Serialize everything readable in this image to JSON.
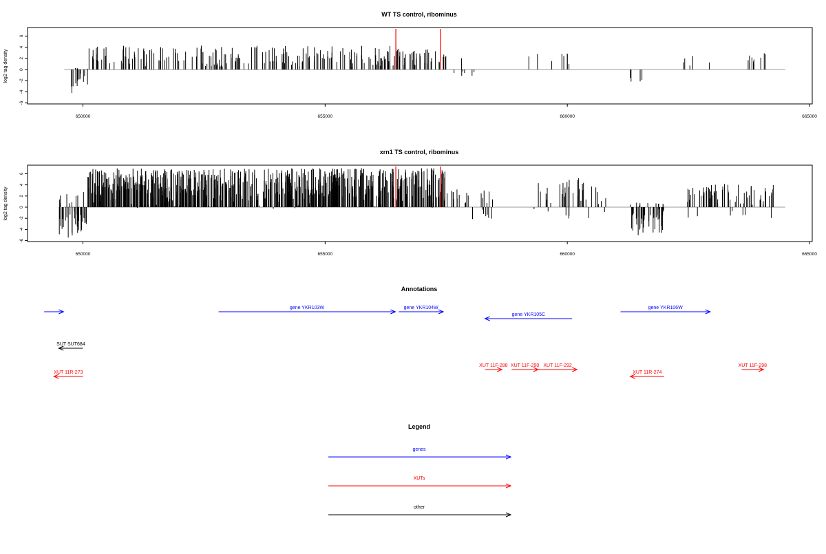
{
  "chart_data": [
    {
      "type": "bar",
      "title": "WT TS control, ribominus",
      "ylabel": "log2 tag density",
      "xlabel": "",
      "xlim": [
        649500,
        665000
      ],
      "ylim": [
        -6,
        7
      ],
      "yticks": [
        -6,
        -4,
        -2,
        0,
        2,
        4,
        6
      ],
      "xticks": [
        650000,
        655000,
        660000,
        665000
      ],
      "xtick_labels": [
        "650000",
        "655000",
        "660000",
        "665000"
      ],
      "baseline_end": 664500,
      "colors": {
        "bars": "#000000",
        "baseline": "#999999",
        "marker": "#ff0000",
        "frame": "#000000"
      },
      "markers": [
        656460,
        657380
      ],
      "segments": [
        {
          "x0": 649700,
          "x1": 650100,
          "min": -4.5,
          "max": 0,
          "pos_prob": 0.15,
          "n": 18
        },
        {
          "x0": 650100,
          "x1": 656500,
          "min": 0.5,
          "max": 4.3,
          "pos_prob": 1.0,
          "n": 200
        },
        {
          "x0": 656500,
          "x1": 657500,
          "min": 0.5,
          "max": 3.8,
          "pos_prob": 1.0,
          "n": 35
        },
        {
          "x0": 657500,
          "x1": 658200,
          "min": -1.2,
          "max": 2.6,
          "pos_prob": 0.5,
          "n": 7
        },
        {
          "x0": 659200,
          "x1": 660100,
          "min": 0.5,
          "max": 3.0,
          "pos_prob": 1.0,
          "n": 8
        },
        {
          "x0": 661300,
          "x1": 661600,
          "min": -3.0,
          "max": 0,
          "pos_prob": 0.0,
          "n": 4
        },
        {
          "x0": 662400,
          "x1": 663100,
          "min": 0.5,
          "max": 2.5,
          "pos_prob": 1.0,
          "n": 5
        },
        {
          "x0": 663700,
          "x1": 664100,
          "min": 0.5,
          "max": 3.0,
          "pos_prob": 1.0,
          "n": 9
        }
      ]
    },
    {
      "type": "bar",
      "title": "xrn1 TS control, ribominus",
      "ylabel": "log2 tag density",
      "xlabel": "",
      "xlim": [
        649500,
        665000
      ],
      "ylim": [
        -6,
        7
      ],
      "yticks": [
        -6,
        -4,
        -2,
        0,
        2,
        4,
        6
      ],
      "xticks": [
        650000,
        655000,
        660000,
        665000
      ],
      "xtick_labels": [
        "650000",
        "655000",
        "660000",
        "665000"
      ],
      "baseline_end": 664500,
      "colors": {
        "bars": "#000000",
        "baseline": "#999999",
        "marker": "#ff0000",
        "frame": "#000000"
      },
      "markers": [
        656460,
        657380
      ],
      "segments": [
        {
          "x0": 649500,
          "x1": 650100,
          "min": -5.5,
          "max": 2.8,
          "pos_prob": 0.25,
          "n": 40
        },
        {
          "x0": 650100,
          "x1": 657500,
          "min": 0.5,
          "max": 7.0,
          "pos_prob": 0.97,
          "n": 700
        },
        {
          "x0": 657500,
          "x1": 658500,
          "min": -2.8,
          "max": 3.2,
          "pos_prob": 0.6,
          "n": 25
        },
        {
          "x0": 659300,
          "x1": 660800,
          "min": -2.2,
          "max": 5.3,
          "pos_prob": 0.75,
          "n": 40
        },
        {
          "x0": 661300,
          "x1": 662000,
          "min": -5.5,
          "max": 0.8,
          "pos_prob": 0.1,
          "n": 50
        },
        {
          "x0": 662400,
          "x1": 664300,
          "min": -2.5,
          "max": 4.2,
          "pos_prob": 0.85,
          "n": 70
        }
      ]
    }
  ],
  "annotations": {
    "title": "Annotations",
    "features": [
      {
        "label": "",
        "x0": 649200,
        "x1": 649600,
        "strand": "+",
        "row": 0,
        "color": "#0000ff"
      },
      {
        "label": "gene YKR103W",
        "x0": 652800,
        "x1": 656450,
        "strand": "+",
        "row": 0,
        "color": "#0000ff"
      },
      {
        "label": "gene YKR104W",
        "x0": 656520,
        "x1": 657440,
        "strand": "+",
        "row": 0,
        "color": "#0000ff"
      },
      {
        "label": "gene YKR105C",
        "x0": 658300,
        "x1": 660100,
        "strand": "-",
        "row": 1,
        "color": "#0000ff"
      },
      {
        "label": "gene YKR106W",
        "x0": 661100,
        "x1": 662950,
        "strand": "+",
        "row": 0,
        "color": "#0000ff"
      },
      {
        "label": "SUT SUT684",
        "x0": 649500,
        "x1": 650000,
        "strand": "-",
        "row": 2,
        "color": "#000000"
      },
      {
        "label": "XUT 11F-288",
        "x0": 658300,
        "x1": 658650,
        "strand": "+",
        "row": 3,
        "color": "#ff0000"
      },
      {
        "label": "XUT 11F-290",
        "x0": 658850,
        "x1": 659400,
        "strand": "+",
        "row": 3,
        "color": "#ff0000"
      },
      {
        "label": "XUT 11F-292",
        "x0": 659400,
        "x1": 660200,
        "strand": "+",
        "row": 3,
        "color": "#ff0000"
      },
      {
        "label": "XUT 11F-298",
        "x0": 663600,
        "x1": 664050,
        "strand": "+",
        "row": 3,
        "color": "#ff0000"
      },
      {
        "label": "XUT 11R-273",
        "x0": 649400,
        "x1": 650000,
        "strand": "-",
        "row": 4,
        "color": "#ff0000"
      },
      {
        "label": "XUT 11R-274",
        "x0": 661300,
        "x1": 662000,
        "strand": "-",
        "row": 4,
        "color": "#ff0000"
      }
    ]
  },
  "legend": {
    "title": "Legend",
    "items": [
      {
        "label": "genes",
        "color": "#0000ff"
      },
      {
        "label": "XUTs",
        "color": "#ff0000"
      },
      {
        "label": "other",
        "color": "#000000"
      }
    ]
  }
}
